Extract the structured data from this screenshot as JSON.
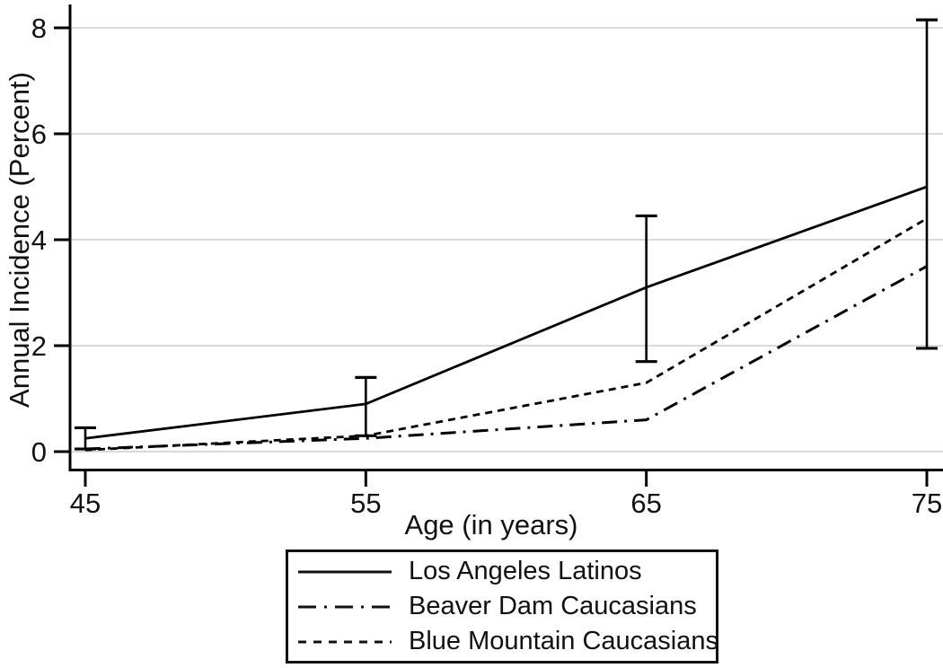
{
  "figure": {
    "background": "#ffffff",
    "axis_color": "#000000",
    "grid_color": "#d9d9d9",
    "text_color": "#111111",
    "series_color": "#000000"
  },
  "chart_data": {
    "type": "line",
    "title": "",
    "xlabel": "Age (in years)",
    "ylabel": "Annual Incidence  (Percent)",
    "x": [
      45,
      55,
      65,
      75
    ],
    "x_tick_labels": [
      "45",
      "55",
      "65",
      "75"
    ],
    "y_tick_values": [
      0,
      2,
      4,
      6,
      8
    ],
    "y_tick_labels": [
      "0",
      "2",
      "4",
      "6",
      "8"
    ],
    "xlim": [
      45,
      75
    ],
    "ylim": [
      0,
      8
    ],
    "grid": "horizontal-light-gray",
    "legend_position": "bottom-center",
    "series": [
      {
        "name": "Los Angeles Latinos",
        "style": "solid",
        "values": [
          0.25,
          0.9,
          3.1,
          5.0
        ]
      },
      {
        "name": "Beaver Dam Caucasians",
        "style": "dash-dot",
        "values": [
          0.05,
          0.25,
          0.6,
          3.5
        ]
      },
      {
        "name": "Blue Mountain Caucasians",
        "style": "dashed",
        "values": [
          0.03,
          0.3,
          1.3,
          4.4
        ]
      }
    ],
    "error_bars": {
      "series": "Los Angeles Latinos",
      "x": [
        45,
        55,
        65,
        75
      ],
      "low": [
        0.05,
        0.3,
        1.7,
        1.95
      ],
      "high": [
        0.45,
        1.4,
        4.45,
        8.15
      ]
    }
  }
}
